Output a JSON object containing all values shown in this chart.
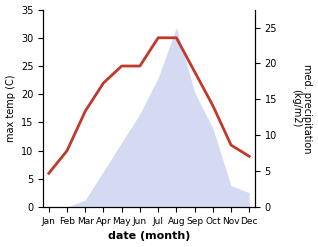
{
  "months": [
    "Jan",
    "Feb",
    "Mar",
    "Apr",
    "May",
    "Jun",
    "Jul",
    "Aug",
    "Sep",
    "Oct",
    "Nov",
    "Dec"
  ],
  "temp": [
    6,
    10,
    17,
    22,
    25,
    25,
    30,
    30,
    24,
    18,
    11,
    9
  ],
  "temp_color": "#c0392b",
  "precip_color": "#b0bce8",
  "background_color": "#ffffff",
  "xlabel": "date (month)",
  "ylabel_left": "max temp (C)",
  "ylabel_right": "med. precipitation\n(kg/m2)",
  "ylim_left": [
    0,
    35
  ],
  "ylim_right": [
    0,
    27.5
  ],
  "yticks_left": [
    0,
    5,
    10,
    15,
    20,
    25,
    30,
    35
  ],
  "yticks_right": [
    0,
    5,
    10,
    15,
    20,
    25
  ],
  "precip_right_scale": [
    0,
    0,
    1,
    5,
    9,
    13,
    18,
    25,
    16,
    11,
    3,
    2
  ],
  "temp_linewidth": 2.0,
  "precip_alpha": 0.55,
  "label_fontsize": 7,
  "tick_fontsize": 7,
  "xlabel_fontsize": 8,
  "xtick_fontsize": 6.5
}
